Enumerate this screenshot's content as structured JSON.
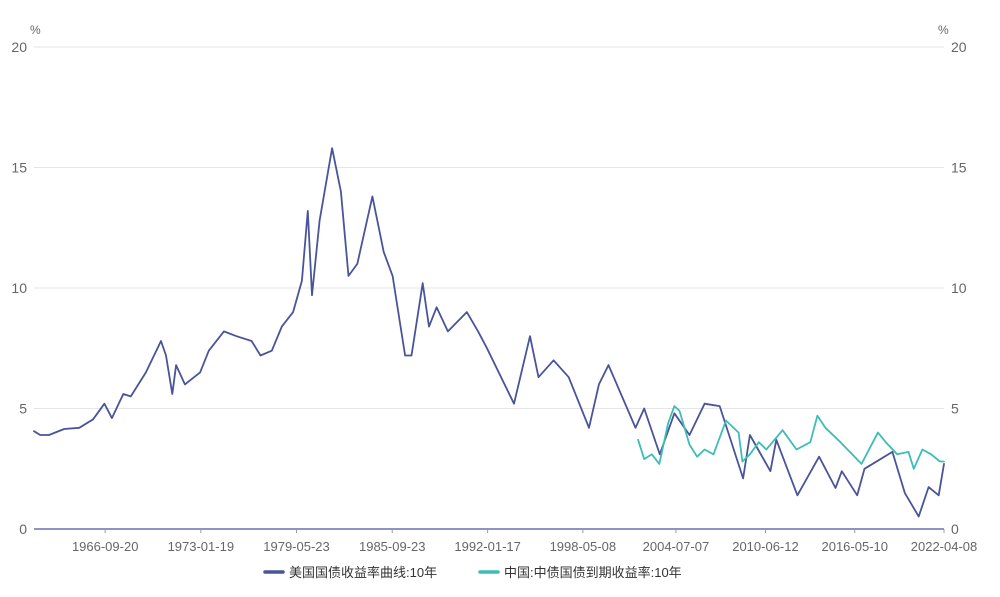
{
  "chart_data": {
    "type": "line",
    "y_unit_left": "%",
    "y_unit_right": "%",
    "ylim": [
      0,
      20
    ],
    "y_ticks": [
      "0",
      "5",
      "10",
      "15",
      "20"
    ],
    "y_tick_values": [
      0,
      5,
      10,
      15,
      20
    ],
    "grid": true,
    "legend_position": "bottom",
    "x_range": [
      "1962-01-02",
      "2022-04-08"
    ],
    "x_tick_labels": [
      "1966-09-20",
      "1973-01-19",
      "1979-05-23",
      "1985-09-23",
      "1992-01-17",
      "1998-05-08",
      "2004-07-07",
      "2010-06-12",
      "2016-05-10",
      "2022-04-08"
    ],
    "series": [
      {
        "name": "美国国债收益率曲线:10年",
        "color": "#4a5499",
        "points": [
          [
            "1962-01-02",
            4.06
          ],
          [
            "1962-06-01",
            3.9
          ],
          [
            "1963-01-01",
            3.9
          ],
          [
            "1964-01-01",
            4.15
          ],
          [
            "1965-01-01",
            4.2
          ],
          [
            "1965-12-01",
            4.55
          ],
          [
            "1966-09-01",
            5.2
          ],
          [
            "1967-03-01",
            4.6
          ],
          [
            "1967-12-01",
            5.6
          ],
          [
            "1968-06-01",
            5.5
          ],
          [
            "1969-06-01",
            6.5
          ],
          [
            "1970-06-01",
            7.8
          ],
          [
            "1970-10-01",
            7.2
          ],
          [
            "1971-03-01",
            5.6
          ],
          [
            "1971-06-01",
            6.8
          ],
          [
            "1972-01-01",
            6.0
          ],
          [
            "1973-01-01",
            6.5
          ],
          [
            "1973-08-01",
            7.4
          ],
          [
            "1974-08-01",
            8.2
          ],
          [
            "1975-06-01",
            8.0
          ],
          [
            "1976-06-01",
            7.8
          ],
          [
            "1977-01-01",
            7.2
          ],
          [
            "1977-10-01",
            7.4
          ],
          [
            "1978-06-01",
            8.4
          ],
          [
            "1979-03-01",
            9.0
          ],
          [
            "1979-10-01",
            10.3
          ],
          [
            "1980-02-20",
            13.2
          ],
          [
            "1980-06-01",
            9.7
          ],
          [
            "1980-12-01",
            12.8
          ],
          [
            "1981-09-30",
            15.8
          ],
          [
            "1982-05-01",
            14.0
          ],
          [
            "1982-11-01",
            10.5
          ],
          [
            "1983-06-01",
            11.0
          ],
          [
            "1984-05-30",
            13.8
          ],
          [
            "1985-03-01",
            11.5
          ],
          [
            "1985-10-01",
            10.5
          ],
          [
            "1986-08-01",
            7.2
          ],
          [
            "1987-01-01",
            7.2
          ],
          [
            "1987-10-01",
            10.2
          ],
          [
            "1988-03-01",
            8.4
          ],
          [
            "1988-09-01",
            9.2
          ],
          [
            "1989-06-01",
            8.2
          ],
          [
            "1990-09-01",
            9.0
          ],
          [
            "1991-06-01",
            8.2
          ],
          [
            "1992-01-01",
            7.5
          ],
          [
            "1993-10-15",
            5.2
          ],
          [
            "1994-11-07",
            8.0
          ],
          [
            "1995-06-01",
            6.3
          ],
          [
            "1996-06-01",
            7.0
          ],
          [
            "1997-06-01",
            6.3
          ],
          [
            "1998-10-05",
            4.2
          ],
          [
            "1999-06-01",
            6.0
          ],
          [
            "2000-01-20",
            6.8
          ],
          [
            "2001-11-01",
            4.2
          ],
          [
            "2002-06-01",
            5.0
          ],
          [
            "2003-06-13",
            3.1
          ],
          [
            "2004-06-01",
            4.8
          ],
          [
            "2005-06-01",
            3.9
          ],
          [
            "2006-06-01",
            5.2
          ],
          [
            "2007-06-01",
            5.1
          ],
          [
            "2008-12-18",
            2.1
          ],
          [
            "2009-06-01",
            3.9
          ],
          [
            "2010-10-08",
            2.4
          ],
          [
            "2011-03-01",
            3.7
          ],
          [
            "2012-07-24",
            1.4
          ],
          [
            "2013-12-31",
            3.0
          ],
          [
            "2015-01-30",
            1.7
          ],
          [
            "2015-07-01",
            2.4
          ],
          [
            "2016-07-08",
            1.4
          ],
          [
            "2017-01-01",
            2.5
          ],
          [
            "2018-11-08",
            3.2
          ],
          [
            "2019-09-03",
            1.5
          ],
          [
            "2020-08-04",
            0.52
          ],
          [
            "2021-03-31",
            1.74
          ],
          [
            "2021-12-01",
            1.4
          ],
          [
            "2022-04-08",
            2.7
          ]
        ]
      },
      {
        "name": "中国:中债国债到期收益率:10年",
        "color": "#3dbdb5",
        "points": [
          [
            "2002-01-04",
            3.7
          ],
          [
            "2002-06-01",
            2.9
          ],
          [
            "2002-12-01",
            3.1
          ],
          [
            "2003-06-01",
            2.7
          ],
          [
            "2004-01-01",
            4.4
          ],
          [
            "2004-06-01",
            5.1
          ],
          [
            "2004-10-01",
            4.9
          ],
          [
            "2005-06-01",
            3.5
          ],
          [
            "2005-12-01",
            3.0
          ],
          [
            "2006-06-01",
            3.3
          ],
          [
            "2007-01-01",
            3.1
          ],
          [
            "2007-11-01",
            4.5
          ],
          [
            "2008-09-01",
            4.0
          ],
          [
            "2008-12-01",
            2.8
          ],
          [
            "2009-06-01",
            3.1
          ],
          [
            "2010-01-01",
            3.6
          ],
          [
            "2010-07-01",
            3.3
          ],
          [
            "2011-08-01",
            4.1
          ],
          [
            "2012-07-01",
            3.3
          ],
          [
            "2013-06-01",
            3.6
          ],
          [
            "2013-11-20",
            4.7
          ],
          [
            "2014-06-01",
            4.2
          ],
          [
            "2015-06-01",
            3.6
          ],
          [
            "2016-10-21",
            2.7
          ],
          [
            "2017-11-22",
            4.0
          ],
          [
            "2018-06-01",
            3.6
          ],
          [
            "2019-03-01",
            3.1
          ],
          [
            "2019-12-01",
            3.2
          ],
          [
            "2020-04-08",
            2.5
          ],
          [
            "2020-11-01",
            3.3
          ],
          [
            "2021-06-01",
            3.1
          ],
          [
            "2022-01-01",
            2.8
          ],
          [
            "2022-04-08",
            2.8
          ]
        ]
      }
    ]
  }
}
